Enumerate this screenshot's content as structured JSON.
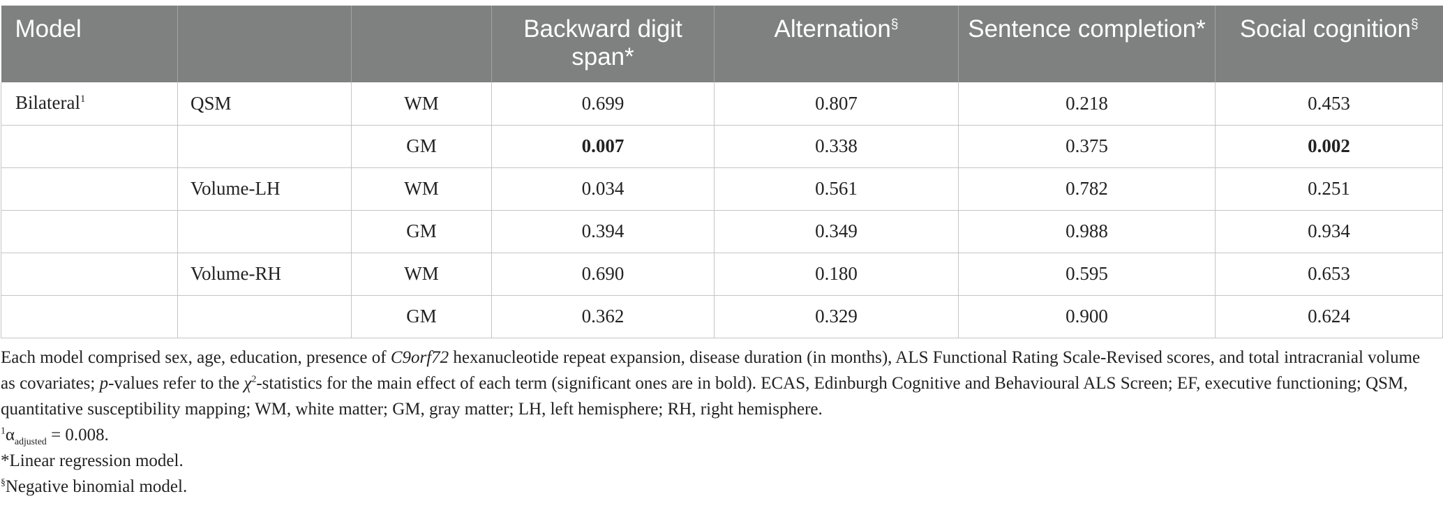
{
  "table": {
    "columns": [
      {
        "label": "Model",
        "mark": ""
      },
      {
        "label": "",
        "mark": ""
      },
      {
        "label": "",
        "mark": ""
      },
      {
        "label": "Backward digit span",
        "mark": "*"
      },
      {
        "label": "Alternation",
        "mark": "§"
      },
      {
        "label": "Sentence completion",
        "mark": "*"
      },
      {
        "label": "Social cognition",
        "mark": "§"
      }
    ],
    "rows": [
      {
        "model": "Bilateral",
        "model_mark": "1",
        "measure": "QSM",
        "tissue": "WM",
        "values": [
          "0.699",
          "0.807",
          "0.218",
          "0.453"
        ],
        "bold": [
          false,
          false,
          false,
          false
        ]
      },
      {
        "model": "",
        "model_mark": "",
        "measure": "",
        "tissue": "GM",
        "values": [
          "0.007",
          "0.338",
          "0.375",
          "0.002"
        ],
        "bold": [
          true,
          false,
          false,
          true
        ]
      },
      {
        "model": "",
        "model_mark": "",
        "measure": "Volume-LH",
        "tissue": "WM",
        "values": [
          "0.034",
          "0.561",
          "0.782",
          "0.251"
        ],
        "bold": [
          false,
          false,
          false,
          false
        ]
      },
      {
        "model": "",
        "model_mark": "",
        "measure": "",
        "tissue": "GM",
        "values": [
          "0.394",
          "0.349",
          "0.988",
          "0.934"
        ],
        "bold": [
          false,
          false,
          false,
          false
        ]
      },
      {
        "model": "",
        "model_mark": "",
        "measure": "Volume-RH",
        "tissue": "WM",
        "values": [
          "0.690",
          "0.180",
          "0.595",
          "0.653"
        ],
        "bold": [
          false,
          false,
          false,
          false
        ]
      },
      {
        "model": "",
        "model_mark": "",
        "measure": "",
        "tissue": "GM",
        "values": [
          "0.362",
          "0.329",
          "0.900",
          "0.624"
        ],
        "bold": [
          false,
          false,
          false,
          false
        ]
      }
    ]
  },
  "notes": {
    "main_a": "Each model comprised sex, age, education, presence of ",
    "main_gene": "C9orf72",
    "main_b": " hexanucleotide repeat expansion, disease duration (in months), ALS Functional Rating Scale-Revised scores, and total intracranial volume as covariates; ",
    "main_p": "p",
    "main_c": "-values refer to the ",
    "main_chi": "χ",
    "main_chi_sup": "2",
    "main_d": "-statistics for the main effect of each term (significant ones are in bold). ECAS, Edinburgh Cognitive and Behavioural ALS Screen; EF, executive functioning; QSM, quantitative susceptibility mapping; WM, white matter; GM, gray matter; LH, left hemisphere; RH, right hemisphere.",
    "alpha_mark": "1",
    "alpha_symbol": "α",
    "alpha_sub": "adjusted",
    "alpha_value": " = 0.008.",
    "linear_mark": "*",
    "linear_text": "Linear regression model.",
    "negbin_mark": "§",
    "negbin_text": "Negative binomial model."
  }
}
